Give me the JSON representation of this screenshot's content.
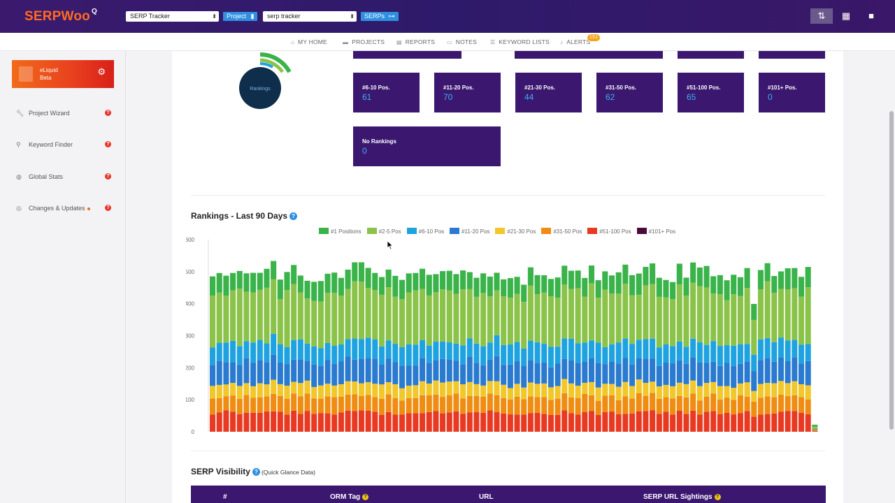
{
  "header": {
    "logo": "SERPWoo",
    "logo_sup": "Q",
    "tool_select": "SERP Tracker",
    "project_pill": "Project",
    "project_select": "serp tracker",
    "serps_pill": "SERPs"
  },
  "nav": {
    "items": [
      {
        "label": "MY HOME",
        "icon": "home-icon"
      },
      {
        "label": "PROJECTS",
        "icon": "folder-icon"
      },
      {
        "label": "REPORTS",
        "icon": "file-icon"
      },
      {
        "label": "NOTES",
        "icon": "comment-icon"
      },
      {
        "label": "KEYWORD LISTS",
        "icon": "list-icon"
      },
      {
        "label": "ALERTS",
        "icon": "bell-icon"
      }
    ],
    "alerts_badge": "151"
  },
  "sidebar": {
    "profile_name": "eLiquid",
    "profile_level": "Beta",
    "items": [
      {
        "label": "Project Wizard",
        "icon": "wrench-icon"
      },
      {
        "label": "Keyword Finder",
        "icon": "search-icon"
      },
      {
        "label": "Global Stats",
        "icon": "globe-icon"
      },
      {
        "label": "Changes & Updates",
        "icon": "history-icon"
      }
    ]
  },
  "donut": {
    "label": "Rankings",
    "colors": [
      "#3ab34a",
      "#8bc34a",
      "#1fa3e0",
      "#1b3b6f"
    ]
  },
  "tiles": [
    {
      "label": "#6-10 Pos.",
      "value": "61"
    },
    {
      "label": "#11-20 Pos.",
      "value": "70"
    },
    {
      "label": "#21-30 Pos.",
      "value": "44"
    },
    {
      "label": "#31-50 Pos.",
      "value": "62"
    },
    {
      "label": "#51-100 Pos.",
      "value": "65"
    },
    {
      "label": "#101+ Pos.",
      "value": "0"
    },
    {
      "label": "No Rankings",
      "value": "0"
    }
  ],
  "rankings_section": {
    "title": "Rankings - Last 90 Days",
    "help": "?"
  },
  "visibility_section": {
    "title": "SERP Visibility",
    "help": "?",
    "note": "(Quick Glance Data)",
    "columns": [
      "#",
      "ORM Tag",
      "URL",
      "SERP URL Sightings"
    ]
  },
  "chart_data": {
    "type": "bar",
    "stacked": true,
    "ylim": [
      0,
      600
    ],
    "yticks": [
      0,
      100,
      200,
      300,
      400,
      500,
      600
    ],
    "grid": false,
    "legend_position": "top",
    "series": [
      {
        "name": "#1 Positions",
        "color": "#3ab34a"
      },
      {
        "name": "#2-5 Pos",
        "color": "#8bc34a"
      },
      {
        "name": "#6-10 Pos",
        "color": "#1fa3e0"
      },
      {
        "name": "#11-20 Pos",
        "color": "#2a7ad0"
      },
      {
        "name": "#21-30 Pos",
        "color": "#f2c72b"
      },
      {
        "name": "#31-50 Pos",
        "color": "#ef8c12"
      },
      {
        "name": "#51-100 Pos",
        "color": "#e83a23"
      },
      {
        "name": "#101+ Pos",
        "color": "#4a0b3a"
      }
    ],
    "typical_stack": [
      60,
      160,
      60,
      70,
      40,
      50,
      60,
      0
    ]
  }
}
